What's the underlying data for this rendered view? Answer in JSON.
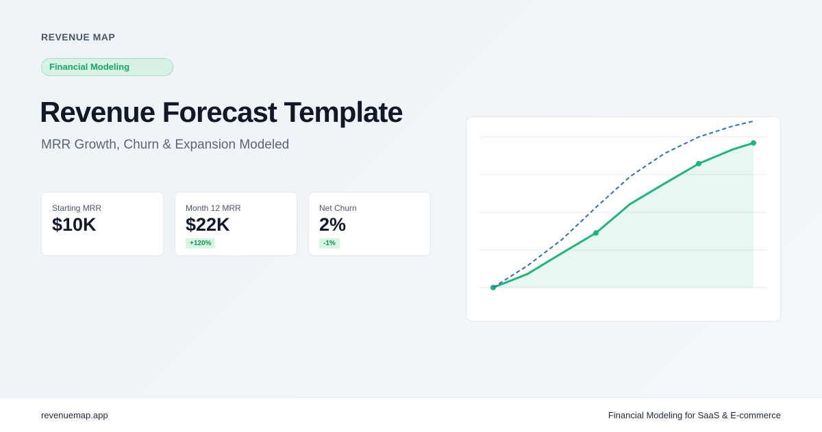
{
  "header": {
    "brand": "REVENUE MAP",
    "badge": "Financial Modeling",
    "title": "Revenue Forecast Template",
    "subtitle": "MRR Growth, Churn & Expansion Modeled"
  },
  "stats": [
    {
      "label": "Starting MRR",
      "value": "$10K"
    },
    {
      "label": "Month 12 MRR",
      "value": "$22K",
      "change": "+120%"
    },
    {
      "label": "Net Churn",
      "value": "2%",
      "change": "-1%"
    }
  ],
  "chart_data": {
    "type": "line",
    "x": [
      0,
      1,
      2,
      3,
      4,
      5,
      6,
      7,
      7.6
    ],
    "series": [
      {
        "color": "#2f6db5",
        "dashed": true,
        "values": [
          0,
          0.58,
          1.27,
          2.13,
          2.95,
          3.56,
          4,
          4.29,
          4.42
        ]
      },
      {
        "color": "#1fb57a",
        "area": true,
        "markers": [
          0,
          3,
          6,
          8
        ],
        "values": [
          0,
          0.36,
          0.91,
          1.45,
          2.22,
          2.76,
          3.29,
          3.67,
          3.84
        ]
      }
    ],
    "xlim": [
      0,
      7.6
    ],
    "ylim": [
      0,
      4.5
    ],
    "yticks": [
      0,
      1,
      2,
      3,
      4
    ],
    "grid": true
  },
  "footer": {
    "site": "revenuemap.app",
    "tagline": "Financial Modeling for SaaS & E-commerce"
  }
}
